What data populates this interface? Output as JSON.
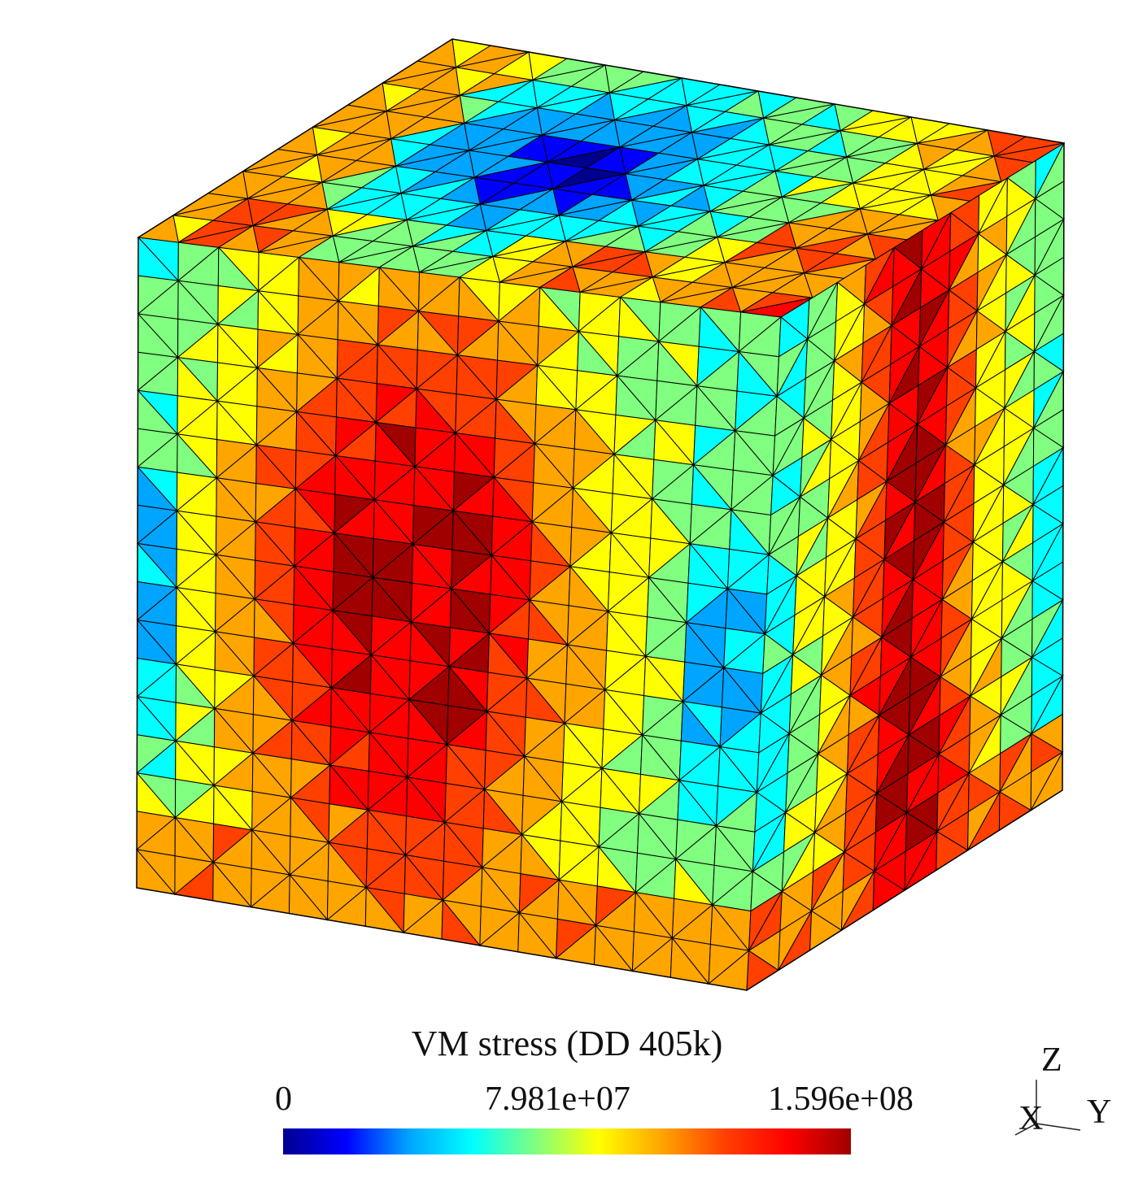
{
  "viewport": {
    "name": "3D mesh view",
    "colormap": [
      "#00008f",
      "#0000ff",
      "#00a5ff",
      "#00ffff",
      "#80ff80",
      "#ffff00",
      "#ffa500",
      "#ff4000",
      "#ff0000",
      "#a00000"
    ],
    "mesh_line_color": "#000000"
  },
  "legend": {
    "title": "VM stress (DD 405k)",
    "min_label": "0",
    "mid_label": "7.981e+07",
    "max_label": "1.596e+08",
    "min_value": 0,
    "mid_value": 79810000,
    "max_value": 159600000
  },
  "axes_triad": {
    "z": "Z",
    "x": "X",
    "y": "Y"
  }
}
